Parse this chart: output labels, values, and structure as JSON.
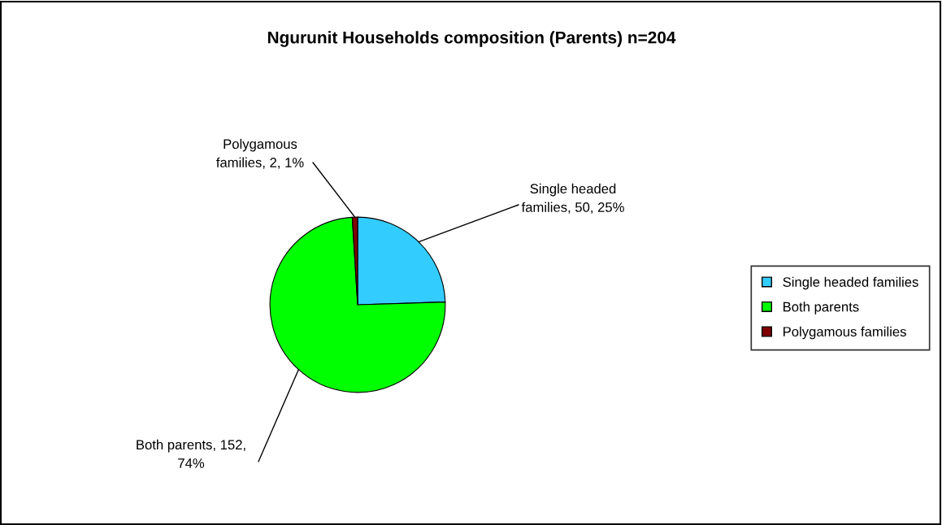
{
  "chart_data": {
    "type": "pie",
    "title": "Ngurunit Households composition (Parents) n=204",
    "categories": [
      "Single headed families",
      "Both parents",
      "Polygamous families"
    ],
    "values": [
      50,
      152,
      2
    ],
    "colors": [
      "#33ccff",
      "#00ff00",
      "#800000"
    ],
    "value_labels": [
      "Single headed\nfamilies, 50, 25%",
      "Both parents, 152,\n74%",
      "Polygamous\nfamilies, 2, 1%"
    ],
    "legend": "right"
  }
}
